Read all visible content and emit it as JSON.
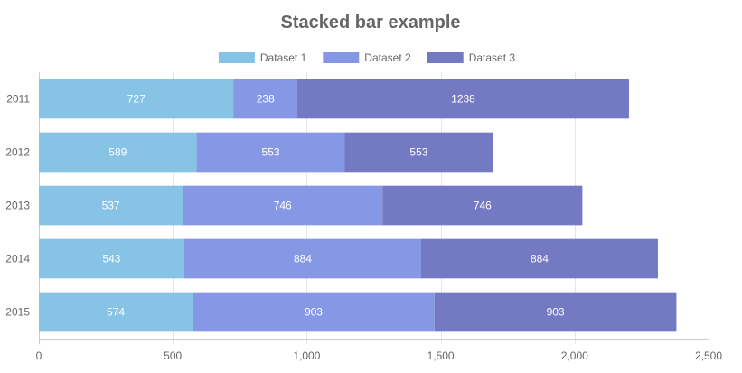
{
  "chart_data": {
    "type": "bar",
    "orientation": "horizontal",
    "stacked": true,
    "title": "Stacked bar example",
    "xlabel": "",
    "ylabel": "",
    "categories": [
      "2011",
      "2012",
      "2013",
      "2014",
      "2015"
    ],
    "series": [
      {
        "name": "Dataset 1",
        "color": "#87c3e5",
        "values": [
          727,
          589,
          537,
          543,
          574
        ]
      },
      {
        "name": "Dataset 2",
        "color": "#8698e5",
        "values": [
          238,
          553,
          746,
          884,
          903
        ]
      },
      {
        "name": "Dataset 3",
        "color": "#7479c3",
        "values": [
          1238,
          553,
          746,
          884,
          903
        ]
      }
    ],
    "xlim": [
      0,
      2500
    ],
    "xticks": [
      0,
      500,
      1000,
      1500,
      2000,
      2500
    ],
    "xtick_labels": [
      "0",
      "500",
      "1,000",
      "1,500",
      "2,000",
      "2,500"
    ],
    "grid": true,
    "legend_position": "top"
  }
}
